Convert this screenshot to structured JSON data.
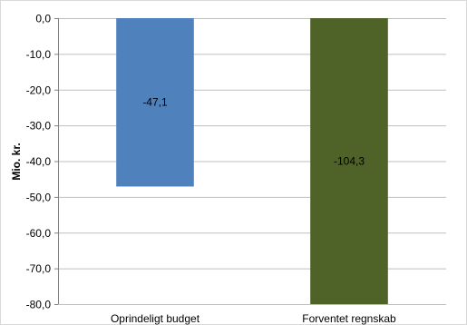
{
  "chart_data": {
    "type": "bar",
    "categories": [
      "Oprindeligt budget",
      "Forventet regnskab"
    ],
    "values": [
      -47.1,
      -104.3
    ],
    "data_labels": [
      "-47,1",
      "-104,3"
    ],
    "bar_colors": [
      "#4f81bd",
      "#4f6228"
    ],
    "ylabel": "Mio. kr.",
    "ylim": [
      -80,
      0
    ],
    "yticks": [
      0,
      -10,
      -20,
      -30,
      -40,
      -50,
      -60,
      -70,
      -80
    ],
    "ytick_labels": [
      "0,0",
      "-10,0",
      "-20,0",
      "-30,0",
      "-40,0",
      "-50,0",
      "-60,0",
      "-70,0",
      "-80,0"
    ],
    "grid": true,
    "legend": "none"
  }
}
